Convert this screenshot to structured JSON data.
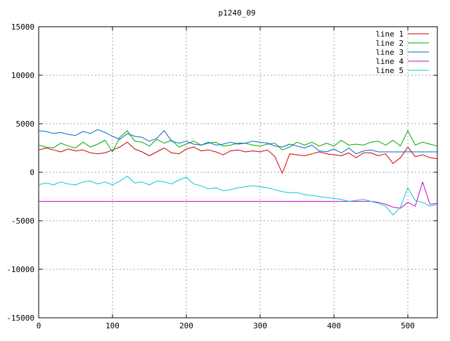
{
  "chart_data": {
    "type": "line",
    "title": "p1240_09",
    "xlabel": "",
    "ylabel": "",
    "xlim": [
      0,
      540
    ],
    "ylim": [
      -15000,
      15000
    ],
    "xticks": [
      0,
      100,
      200,
      300,
      400,
      500
    ],
    "yticks": [
      -15000,
      -10000,
      -5000,
      0,
      5000,
      10000,
      15000
    ],
    "xtick_labels": [
      "0",
      "100",
      "200",
      "300",
      "400",
      "500"
    ],
    "ytick_labels": [
      "-15000",
      "-10000",
      "-5000",
      "0",
      "5000",
      "10000",
      "15000"
    ],
    "grid": true,
    "legend_position": "top-right",
    "x": [
      0,
      10,
      20,
      30,
      40,
      50,
      60,
      70,
      80,
      90,
      100,
      110,
      120,
      130,
      140,
      150,
      160,
      170,
      180,
      190,
      200,
      210,
      220,
      230,
      240,
      250,
      260,
      270,
      280,
      290,
      300,
      310,
      320,
      330,
      340,
      350,
      360,
      370,
      380,
      390,
      400,
      410,
      420,
      430,
      440,
      450,
      460,
      470,
      480,
      490,
      500,
      510,
      520,
      530,
      540
    ],
    "series": [
      {
        "name": "line 1",
        "color": "#cc0000",
        "values": [
          2300,
          2500,
          2300,
          2100,
          2400,
          2200,
          2300,
          2000,
          1900,
          2000,
          2300,
          2600,
          3100,
          2400,
          2100,
          1700,
          2100,
          2500,
          2000,
          1900,
          2400,
          2600,
          2200,
          2300,
          2100,
          1800,
          2200,
          2300,
          2100,
          2200,
          2100,
          2300,
          1600,
          -100,
          1900,
          1800,
          1700,
          1900,
          2100,
          1900,
          1800,
          1700,
          2000,
          1500,
          2000,
          2000,
          1700,
          1900,
          900,
          1500,
          2600,
          1600,
          1800,
          1500,
          1400
        ]
      },
      {
        "name": "line 2",
        "color": "#00aa00",
        "values": [
          2800,
          2600,
          2500,
          3000,
          2700,
          2500,
          3100,
          2600,
          2900,
          3300,
          2100,
          3600,
          4300,
          3200,
          3100,
          2700,
          3400,
          3000,
          3300,
          2600,
          2900,
          3200,
          2800,
          3000,
          3100,
          2700,
          2800,
          3000,
          3000,
          2800,
          2700,
          2900,
          3000,
          2300,
          2600,
          3100,
          2800,
          3100,
          2700,
          3000,
          2700,
          3300,
          2800,
          2900,
          2800,
          3100,
          3200,
          2800,
          3300,
          2700,
          4300,
          2800,
          3100,
          2900,
          2700
        ]
      },
      {
        "name": "line 3",
        "color": "#0066cc",
        "values": [
          4300,
          4200,
          4000,
          4100,
          3900,
          3800,
          4200,
          4000,
          4400,
          4100,
          3700,
          3400,
          4000,
          3700,
          3600,
          3200,
          3500,
          4300,
          3200,
          3000,
          3200,
          2900,
          2800,
          3100,
          2800,
          2900,
          3100,
          2900,
          3000,
          3200,
          3100,
          3000,
          2700,
          2600,
          2900,
          2700,
          2500,
          2800,
          2200,
          2100,
          2400,
          2000,
          2500,
          1900,
          2200,
          2300,
          2100,
          2100,
          2100,
          2100,
          2100,
          2100,
          2100,
          2100,
          2100
        ]
      },
      {
        "name": "line 4",
        "color": "#cc00cc",
        "values": [
          -3000,
          -3000,
          -3000,
          -3000,
          -3000,
          -3000,
          -3000,
          -3000,
          -3000,
          -3000,
          -3000,
          -3000,
          -3000,
          -3000,
          -3000,
          -3000,
          -3000,
          -3000,
          -3000,
          -3000,
          -3000,
          -3000,
          -3000,
          -3000,
          -3000,
          -3000,
          -3000,
          -3000,
          -3000,
          -3000,
          -3000,
          -3000,
          -3000,
          -3000,
          -3000,
          -3000,
          -3000,
          -3000,
          -3000,
          -3000,
          -3000,
          -3000,
          -3000,
          -3000,
          -3000,
          -3000,
          -3100,
          -3300,
          -3600,
          -3700,
          -3100,
          -3500,
          -1000,
          -3300,
          -3200
        ]
      },
      {
        "name": "line 5",
        "color": "#00cccc",
        "values": [
          -1300,
          -1100,
          -1300,
          -1000,
          -1200,
          -1300,
          -1000,
          -900,
          -1200,
          -1000,
          -1300,
          -900,
          -400,
          -1100,
          -1000,
          -1300,
          -900,
          -1000,
          -1200,
          -800,
          -500,
          -1200,
          -1400,
          -1700,
          -1600,
          -1900,
          -1800,
          -1600,
          -1500,
          -1400,
          -1500,
          -1600,
          -1800,
          -2000,
          -2100,
          -2100,
          -2300,
          -2400,
          -2500,
          -2600,
          -2700,
          -2800,
          -3000,
          -2900,
          -2800,
          -3000,
          -3200,
          -3500,
          -4400,
          -3600,
          -1600,
          -2900,
          -3100,
          -3500,
          -3300
        ]
      }
    ]
  }
}
